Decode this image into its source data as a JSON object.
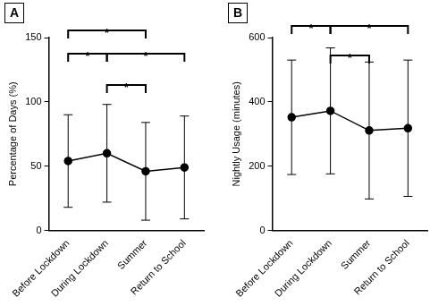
{
  "chart_data": [
    {
      "type": "line",
      "title": "A",
      "categories": [
        "Before Lockdown",
        "During Lockdown",
        "Summer",
        "Return to School"
      ],
      "values": [
        54,
        60,
        46,
        49
      ],
      "error": [
        36,
        38,
        38,
        40
      ],
      "ylabel": "Percentage of Days (%)",
      "ylim": [
        0,
        150
      ],
      "yticks": [
        0,
        50,
        100,
        150
      ],
      "grid": false,
      "color": "#000000",
      "marker": "circle",
      "significance": [
        {
          "from": "Before Lockdown",
          "to": "Summer",
          "label": "*"
        },
        {
          "from": "Before Lockdown",
          "to": "During Lockdown",
          "label": "*"
        },
        {
          "from": "During Lockdown",
          "to": "Return to School",
          "label": "*"
        },
        {
          "from": "During Lockdown",
          "to": "Summer",
          "label": "*"
        }
      ]
    },
    {
      "type": "line",
      "title": "B",
      "categories": [
        "Before Lockdown",
        "During Lockdown",
        "Summer",
        "Return to School"
      ],
      "values": [
        352,
        372,
        311,
        318
      ],
      "error": [
        178,
        196,
        213,
        212
      ],
      "ylabel": "Nightly Usage (minutes)",
      "ylim": [
        0,
        600
      ],
      "yticks": [
        0,
        200,
        400,
        600
      ],
      "grid": false,
      "color": "#000000",
      "marker": "circle",
      "significance": [
        {
          "from": "Before Lockdown",
          "to": "During Lockdown",
          "label": "*"
        },
        {
          "from": "During Lockdown",
          "to": "Return to School",
          "label": "*"
        },
        {
          "from": "During Lockdown",
          "to": "Summer",
          "label": "*"
        }
      ]
    }
  ]
}
